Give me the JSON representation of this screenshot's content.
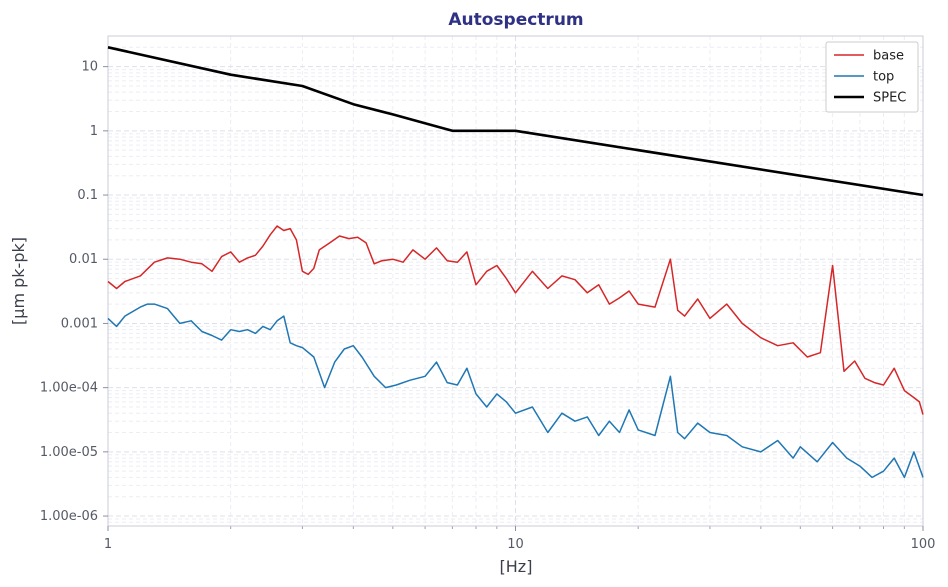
{
  "chart_data": {
    "type": "line",
    "title": "Autospectrum",
    "xlabel": "[Hz]",
    "ylabel": "[µm pk-pk]",
    "x_scale": "log",
    "y_scale": "log",
    "xlim": [
      1,
      100
    ],
    "ylim": [
      7e-07,
      30
    ],
    "x_ticks": [
      {
        "value": 1,
        "label": "1"
      },
      {
        "value": 10,
        "label": "10"
      },
      {
        "value": 100,
        "label": "100"
      }
    ],
    "y_ticks": [
      {
        "value": 10,
        "label": "10"
      },
      {
        "value": 1,
        "label": "1"
      },
      {
        "value": 0.1,
        "label": "0.1"
      },
      {
        "value": 0.01,
        "label": "0.01"
      },
      {
        "value": 0.001,
        "label": "0.001"
      },
      {
        "value": 0.0001,
        "label": "1.00e-04"
      },
      {
        "value": 1e-05,
        "label": "1.00e-05"
      },
      {
        "value": 1e-06,
        "label": "1.00e-06"
      }
    ],
    "grid": true,
    "legend_position": "top-right",
    "series": [
      {
        "name": "base",
        "color": "#d62728",
        "x": [
          1,
          1.05,
          1.1,
          1.2,
          1.3,
          1.4,
          1.5,
          1.6,
          1.7,
          1.8,
          1.9,
          2.0,
          2.1,
          2.2,
          2.3,
          2.4,
          2.5,
          2.6,
          2.7,
          2.8,
          2.9,
          3.0,
          3.1,
          3.2,
          3.3,
          3.5,
          3.7,
          3.9,
          4.1,
          4.3,
          4.5,
          4.7,
          5.0,
          5.3,
          5.6,
          6.0,
          6.4,
          6.8,
          7.2,
          7.6,
          8.0,
          8.5,
          9.0,
          9.5,
          10,
          11,
          12,
          13,
          14,
          15,
          16,
          17,
          18,
          19,
          20,
          22,
          24,
          25,
          26,
          28,
          30,
          33,
          36,
          40,
          44,
          48,
          52,
          56,
          60,
          64,
          68,
          72,
          76,
          80,
          85,
          90,
          95,
          98,
          100
        ],
        "y": [
          0.0045,
          0.0035,
          0.0045,
          0.0055,
          0.009,
          0.0105,
          0.01,
          0.009,
          0.0085,
          0.0065,
          0.011,
          0.013,
          0.009,
          0.0105,
          0.0115,
          0.016,
          0.024,
          0.033,
          0.028,
          0.03,
          0.02,
          0.0065,
          0.0058,
          0.0072,
          0.014,
          0.018,
          0.023,
          0.021,
          0.022,
          0.018,
          0.0085,
          0.0095,
          0.01,
          0.009,
          0.014,
          0.01,
          0.015,
          0.0095,
          0.009,
          0.013,
          0.004,
          0.0065,
          0.008,
          0.005,
          0.003,
          0.0065,
          0.0035,
          0.0055,
          0.0048,
          0.003,
          0.004,
          0.002,
          0.0025,
          0.0032,
          0.002,
          0.0018,
          0.01,
          0.0016,
          0.0013,
          0.0024,
          0.0012,
          0.002,
          0.001,
          0.0006,
          0.00045,
          0.0005,
          0.0003,
          0.00035,
          0.008,
          0.00018,
          0.00026,
          0.00014,
          0.00012,
          0.00011,
          0.0002,
          9e-05,
          7e-05,
          6e-05,
          3.8e-05
        ]
      },
      {
        "name": "top",
        "color": "#1f77b4",
        "x": [
          1,
          1.05,
          1.1,
          1.2,
          1.25,
          1.3,
          1.4,
          1.5,
          1.6,
          1.7,
          1.8,
          1.9,
          2.0,
          2.1,
          2.2,
          2.3,
          2.4,
          2.5,
          2.6,
          2.7,
          2.8,
          2.9,
          3.0,
          3.2,
          3.4,
          3.6,
          3.8,
          4.0,
          4.2,
          4.5,
          4.8,
          5.1,
          5.5,
          6.0,
          6.4,
          6.8,
          7.2,
          7.6,
          8.0,
          8.5,
          9.0,
          9.5,
          10,
          11,
          12,
          13,
          14,
          15,
          16,
          17,
          18,
          19,
          20,
          22,
          24,
          25,
          26,
          28,
          30,
          33,
          36,
          40,
          44,
          48,
          50,
          55,
          60,
          65,
          70,
          75,
          80,
          85,
          90,
          95,
          100
        ],
        "y": [
          0.0012,
          0.0009,
          0.0013,
          0.0018,
          0.002,
          0.002,
          0.0017,
          0.001,
          0.0011,
          0.00075,
          0.00065,
          0.00055,
          0.0008,
          0.00075,
          0.0008,
          0.0007,
          0.0009,
          0.0008,
          0.0011,
          0.0013,
          0.0005,
          0.00045,
          0.00042,
          0.0003,
          0.0001,
          0.00025,
          0.0004,
          0.00045,
          0.0003,
          0.00015,
          0.0001,
          0.00011,
          0.00013,
          0.00015,
          0.00025,
          0.00012,
          0.00011,
          0.0002,
          8e-05,
          5e-05,
          8e-05,
          6e-05,
          4e-05,
          5e-05,
          2e-05,
          4e-05,
          3e-05,
          3.5e-05,
          1.8e-05,
          3e-05,
          2e-05,
          4.5e-05,
          2.2e-05,
          1.8e-05,
          0.00015,
          2e-05,
          1.6e-05,
          2.8e-05,
          2e-05,
          1.8e-05,
          1.2e-05,
          1e-05,
          1.5e-05,
          8e-06,
          1.2e-05,
          7e-06,
          1.4e-05,
          8e-06,
          6e-06,
          4e-06,
          5e-06,
          8e-06,
          4e-06,
          1e-05,
          4e-06
        ]
      },
      {
        "name": "SPEC",
        "color": "#000000",
        "x": [
          1,
          2,
          3,
          4,
          5,
          7,
          10,
          100
        ],
        "y": [
          20,
          7.5,
          5,
          2.6,
          1.8,
          1.0,
          1.0,
          0.1
        ]
      }
    ]
  }
}
